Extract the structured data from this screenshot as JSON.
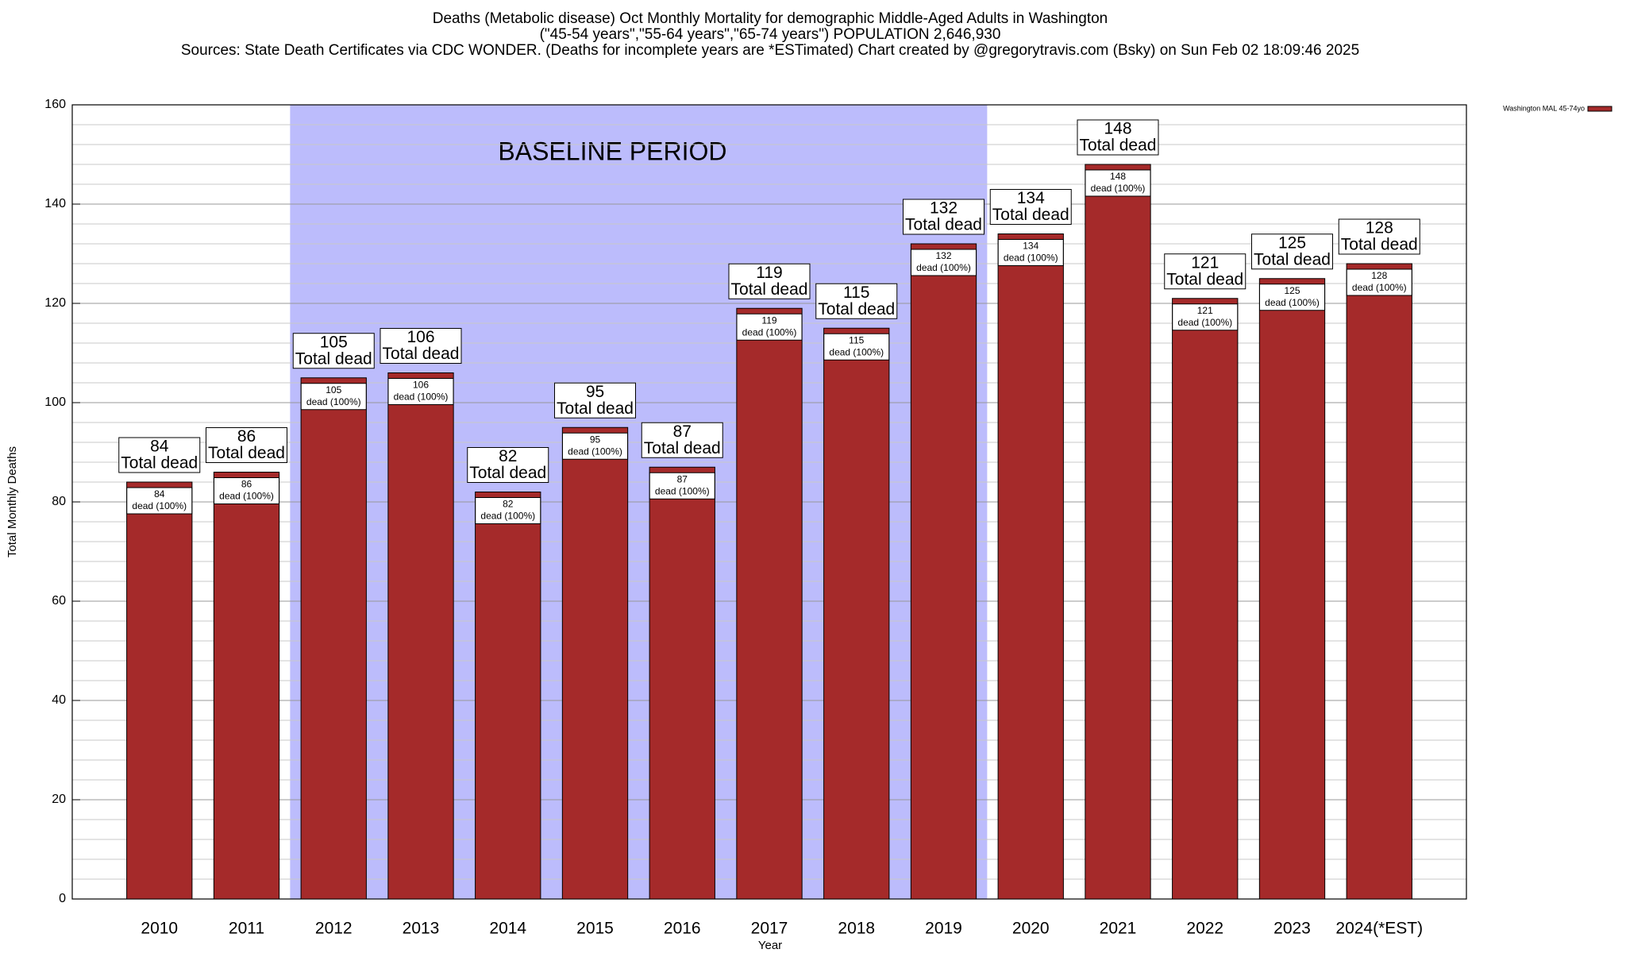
{
  "chart_data": {
    "type": "bar",
    "title_lines": [
      "Deaths (Metabolic disease) Oct Monthly Mortality for demographic Middle-Aged Adults in Washington",
      "(\"45-54 years\",\"55-64 years\",\"65-74 years\") POPULATION 2,646,930",
      "Sources: State Death Certificates via CDC WONDER. (Deaths for incomplete years are *ESTimated)                Chart created by @gregorytravis.com (Bsky) on Sun Feb 02 18:09:46 2025"
    ],
    "x_label": "Year",
    "y_label": "Total Monthly Deaths",
    "categories": [
      "2010",
      "2011",
      "2012",
      "2013",
      "2014",
      "2015",
      "2016",
      "2017",
      "2018",
      "2019",
      "2020",
      "2021",
      "2022",
      "2023",
      "2024(*EST)"
    ],
    "series": [
      {
        "name": "Washington MAL 45-74yo",
        "color": "#a52a2a",
        "values": [
          84,
          86,
          105,
          106,
          82,
          95,
          87,
          119,
          115,
          132,
          134,
          148,
          121,
          125,
          128
        ]
      }
    ],
    "total_label": "Total dead",
    "share_label": "dead (100%)",
    "baseline": {
      "label": "BASELINE PERIOD",
      "start": "2012",
      "end": "2019",
      "color": "#bcbcfc"
    },
    "ylim": [
      0,
      160
    ],
    "yticks": [
      0,
      20,
      40,
      60,
      80,
      100,
      120,
      140,
      160
    ],
    "grid": true,
    "legend": "top-right"
  }
}
